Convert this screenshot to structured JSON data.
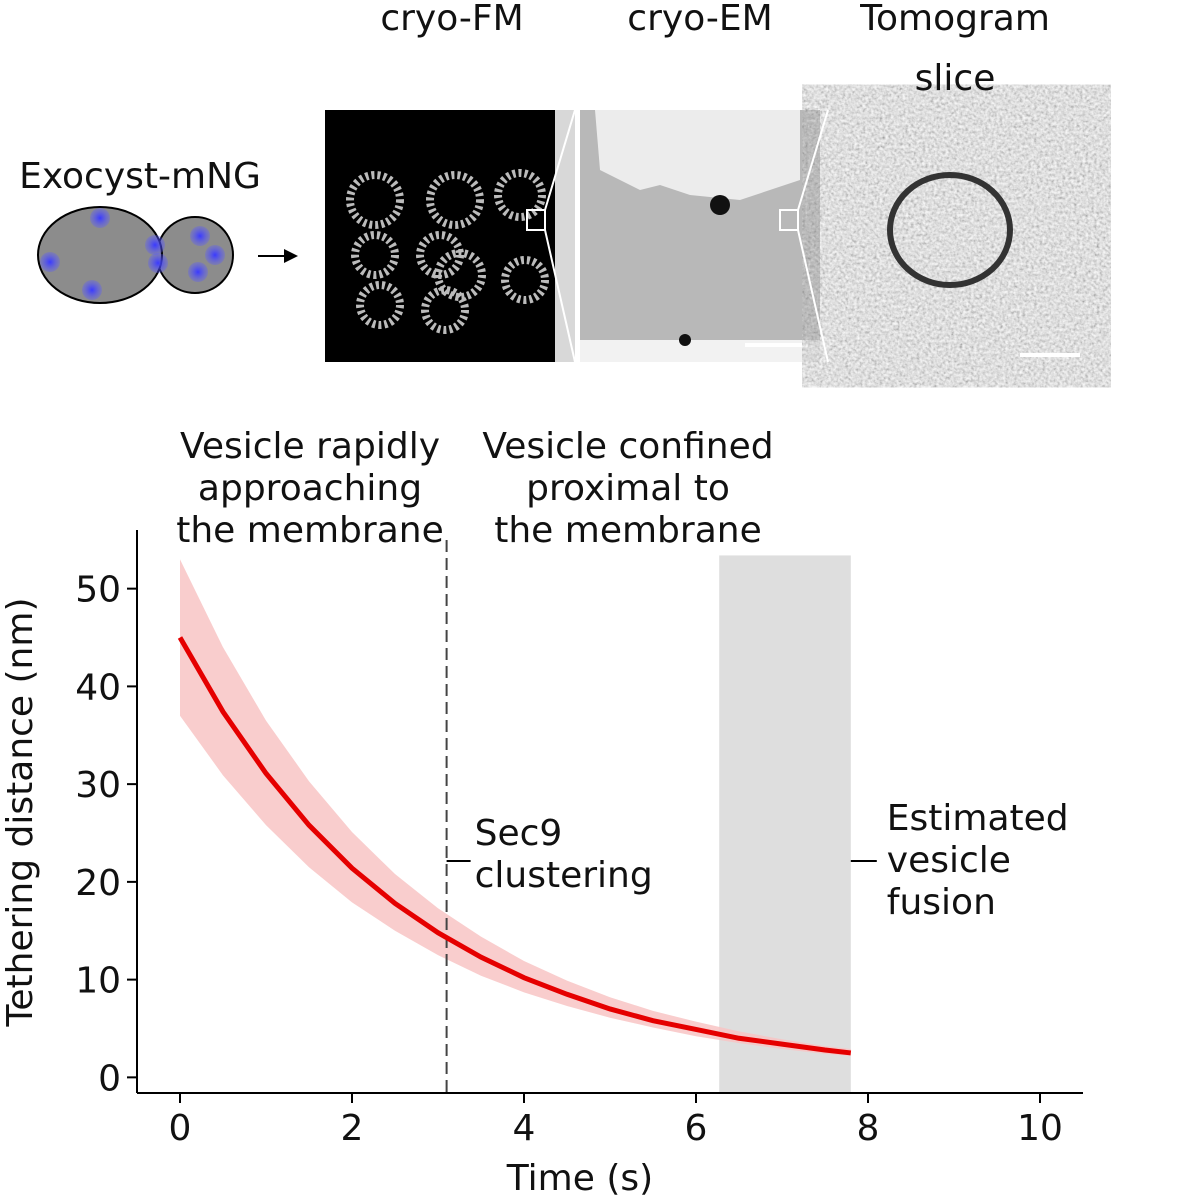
{
  "header": {
    "cell_label": "Exocyst-mNG",
    "panels": [
      "cryo-FM",
      "cryo-EM",
      [
        "Tomogram",
        "slice"
      ]
    ]
  },
  "chart_data": {
    "type": "line",
    "x_label": "Time (s)",
    "y_label": "Tethering distance (nm)",
    "x": [
      0,
      0.5,
      1,
      1.5,
      2,
      2.5,
      3,
      3.5,
      4,
      4.5,
      5,
      5.5,
      6,
      6.5,
      7,
      7.5,
      7.8
    ],
    "series": [
      {
        "color": "#e50000",
        "values": [
          45,
          37.4,
          31.1,
          25.8,
          21.4,
          17.8,
          14.8,
          12.3,
          10.2,
          8.5,
          7.0,
          5.8,
          4.9,
          4.0,
          3.4,
          2.8,
          2.5
        ]
      }
    ],
    "band": {
      "color": "#f8c4c4",
      "upper": [
        53,
        44.0,
        36.5,
        30.3,
        25.1,
        20.8,
        17.3,
        14.4,
        11.9,
        9.9,
        8.2,
        6.8,
        5.7,
        4.7,
        3.9,
        3.2,
        2.9
      ],
      "lower": [
        37,
        30.9,
        25.8,
        21.5,
        17.9,
        15.0,
        12.5,
        10.4,
        8.7,
        7.3,
        6.1,
        5.1,
        4.2,
        3.5,
        2.9,
        2.4,
        2.2
      ]
    },
    "vline": {
      "x": 3.1,
      "label": [
        "Sec9",
        "clustering"
      ]
    },
    "span": {
      "x": [
        6.27,
        7.8
      ],
      "ymax": 53.4,
      "color": "#dedede",
      "label": [
        "Estimated",
        "vesicle",
        "fusion"
      ]
    },
    "phases": [
      [
        "Vesicle rapidly",
        "approaching",
        "the membrane"
      ],
      [
        "Vesicle confined",
        "proximal to",
        "the membrane"
      ]
    ],
    "xlim": [
      -0.5,
      10.5
    ],
    "ylim": [
      -1.6,
      56
    ],
    "xticks": [
      0,
      2,
      4,
      6,
      8,
      10
    ],
    "yticks": [
      0,
      10,
      20,
      30,
      40,
      50
    ]
  }
}
